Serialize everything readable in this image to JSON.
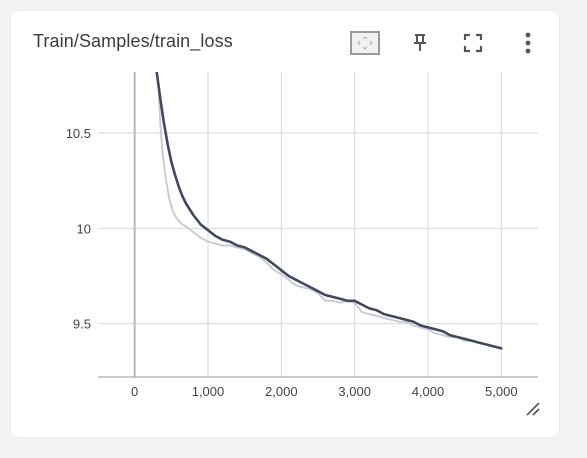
{
  "card": {
    "title": "Train/Samples/train_loss"
  },
  "toolbar": {
    "fit_icon": "fit-domain-icon",
    "pin_icon": "pin-icon",
    "fullscreen_icon": "fullscreen-icon",
    "more_icon": "more-vert-icon"
  },
  "colors": {
    "smoothed_line": "#3f4a5f",
    "raw_line": "#c9ccd2",
    "grid": "#d7d7d7",
    "axis_text": "#444444",
    "icon": "#555555"
  },
  "chart_data": {
    "type": "line",
    "title": "Train/Samples/train_loss",
    "xlabel": "",
    "ylabel": "",
    "xlim": [
      -500,
      5500
    ],
    "ylim": [
      9.22,
      10.82
    ],
    "x_ticks": [
      0,
      1000,
      2000,
      3000,
      4000,
      5000
    ],
    "x_tick_labels": [
      "0",
      "1,000",
      "2,000",
      "3,000",
      "4,000",
      "5,000"
    ],
    "y_ticks": [
      9.5,
      10,
      10.5
    ],
    "y_tick_labels": [
      "9.5",
      "10",
      "10.5"
    ],
    "grid": true,
    "legend": "none",
    "series": [
      {
        "role": "raw",
        "x": [
          330,
          350,
          380,
          420,
          470,
          520,
          560,
          600,
          650,
          700,
          800,
          900,
          1000,
          1100,
          1200,
          1300,
          1400,
          1500,
          1600,
          1700,
          1800,
          1900,
          2000,
          2100,
          2200,
          2300,
          2400,
          2500,
          2600,
          2700,
          2800,
          2900,
          3000,
          3100,
          3200,
          3300,
          3400,
          3500,
          3600,
          3700,
          3800,
          3900,
          4000,
          4100,
          4200,
          4300,
          4400,
          4500,
          4600,
          4700,
          4800,
          4900,
          5000
        ],
        "values": [
          10.7,
          10.55,
          10.4,
          10.27,
          10.16,
          10.09,
          10.06,
          10.04,
          10.02,
          10.01,
          9.98,
          9.95,
          9.93,
          9.92,
          9.91,
          9.91,
          9.9,
          9.89,
          9.87,
          9.85,
          9.82,
          9.78,
          9.76,
          9.73,
          9.7,
          9.69,
          9.68,
          9.66,
          9.62,
          9.62,
          9.61,
          9.62,
          9.61,
          9.56,
          9.55,
          9.54,
          9.53,
          9.52,
          9.51,
          9.51,
          9.49,
          9.48,
          9.47,
          9.45,
          9.44,
          9.43,
          9.43,
          9.41,
          9.41,
          9.4,
          9.39,
          9.38,
          9.37
        ]
      },
      {
        "role": "smoothed",
        "x": [
          300,
          350,
          400,
          450,
          500,
          550,
          600,
          650,
          700,
          800,
          900,
          1000,
          1100,
          1200,
          1300,
          1400,
          1500,
          1600,
          1700,
          1800,
          1900,
          2000,
          2100,
          2200,
          2300,
          2400,
          2500,
          2600,
          2700,
          2800,
          2900,
          3000,
          3100,
          3200,
          3300,
          3400,
          3500,
          3600,
          3700,
          3800,
          3900,
          4000,
          4100,
          4200,
          4300,
          4400,
          4500,
          4600,
          4700,
          4800,
          4900,
          5000
        ],
        "values": [
          10.82,
          10.68,
          10.55,
          10.44,
          10.35,
          10.28,
          10.22,
          10.17,
          10.13,
          10.07,
          10.02,
          9.99,
          9.96,
          9.94,
          9.93,
          9.91,
          9.9,
          9.88,
          9.86,
          9.84,
          9.81,
          9.78,
          9.75,
          9.73,
          9.71,
          9.69,
          9.67,
          9.65,
          9.64,
          9.63,
          9.62,
          9.62,
          9.6,
          9.58,
          9.57,
          9.55,
          9.54,
          9.53,
          9.52,
          9.51,
          9.49,
          9.48,
          9.47,
          9.46,
          9.44,
          9.43,
          9.42,
          9.41,
          9.4,
          9.39,
          9.38,
          9.37
        ]
      }
    ]
  }
}
